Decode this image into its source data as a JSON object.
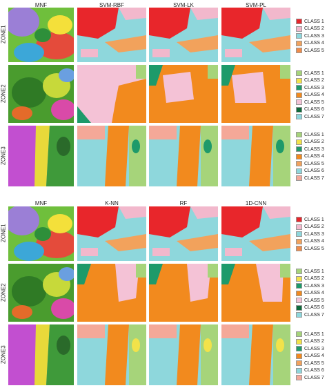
{
  "top": {
    "columns": [
      "MNF",
      "SVM-RBF",
      "SVM-LK",
      "SVM-PL"
    ],
    "zones": [
      "ZONE1",
      "ZONE2",
      "ZONE3"
    ]
  },
  "bottom": {
    "columns": [
      "MNF",
      "K-NN",
      "RF",
      "1D-CNN"
    ],
    "zones": [
      "ZONE1",
      "ZONE2",
      "ZONE3"
    ]
  },
  "legends": {
    "zone1": [
      {
        "label": "CLASS 1",
        "color": "#e8262b"
      },
      {
        "label": "CLASS 2",
        "color": "#f2b8cc"
      },
      {
        "label": "CLASS 3",
        "color": "#8ed7dc"
      },
      {
        "label": "CLASS 4",
        "color": "#f2a25c"
      },
      {
        "label": "CLASS 5",
        "color": "#f08c4a"
      }
    ],
    "zone2": [
      {
        "label": "CLASS 1",
        "color": "#a6d47a"
      },
      {
        "label": "CLASS 2",
        "color": "#f2e24a"
      },
      {
        "label": "CLASS 3",
        "color": "#1e9a6a"
      },
      {
        "label": "CLASS 4",
        "color": "#f28a1e"
      },
      {
        "label": "CLASS 5",
        "color": "#f4c2d6"
      },
      {
        "label": "CLASS 6",
        "color": "#0f6a3a"
      },
      {
        "label": "CLASS 7",
        "color": "#8ed7dc"
      }
    ],
    "zone3": [
      {
        "label": "CLASS 1",
        "color": "#a6d47a"
      },
      {
        "label": "CLASS 2",
        "color": "#f2e24a"
      },
      {
        "label": "CLASS 3",
        "color": "#1e9a6a"
      },
      {
        "label": "CLASS 4",
        "color": "#f28a1e"
      },
      {
        "label": "CLASS 5",
        "color": "#f2a25c"
      },
      {
        "label": "CLASS 6",
        "color": "#8ed7dc"
      },
      {
        "label": "CLASS 7",
        "color": "#f4a898"
      }
    ]
  }
}
